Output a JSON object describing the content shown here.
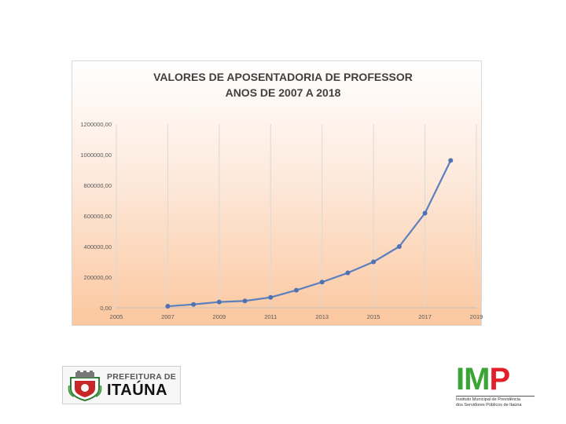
{
  "chart_data": {
    "type": "line",
    "title_line1": "VALORES DE APOSENTADORIA DE PROFESSOR",
    "title_line2": "ANOS DE 2007 A 2018",
    "x": [
      2007,
      2008,
      2009,
      2010,
      2011,
      2012,
      2013,
      2014,
      2015,
      2016,
      2017,
      2018
    ],
    "y": [
      10000,
      22000,
      38000,
      45000,
      68000,
      115000,
      168000,
      228000,
      300000,
      400000,
      618000,
      962000
    ],
    "xlim": [
      2005,
      2019
    ],
    "ylim": [
      0,
      1200000
    ],
    "x_ticks": [
      2005,
      2007,
      2009,
      2011,
      2013,
      2015,
      2017,
      2019
    ],
    "y_ticks": [
      0,
      200000,
      400000,
      600000,
      800000,
      1000000,
      1200000
    ],
    "x_tick_labels": [
      "2005",
      "2007",
      "2009",
      "2011",
      "2013",
      "2015",
      "2017",
      "2019"
    ],
    "y_tick_labels": [
      "0,00",
      "200000,00",
      "400000,00",
      "600000,00",
      "800000,00",
      "1000000,00",
      "1200000,00"
    ],
    "grid": "vertical",
    "line_color": "#5b7fbf",
    "marker_color": "#4f72b3"
  },
  "logos": {
    "itauna_top": "PREFEITURA DE",
    "itauna_bottom": "ITAÚNA",
    "imp_i": "I",
    "imp_m": "M",
    "imp_p": "P",
    "imp_line1": "Instituto Municipal de Previdência",
    "imp_line2": "dos Servidores Públicos de Itaúna",
    "colors": {
      "imp_green": "#3aa535",
      "imp_red": "#e3202a"
    }
  }
}
